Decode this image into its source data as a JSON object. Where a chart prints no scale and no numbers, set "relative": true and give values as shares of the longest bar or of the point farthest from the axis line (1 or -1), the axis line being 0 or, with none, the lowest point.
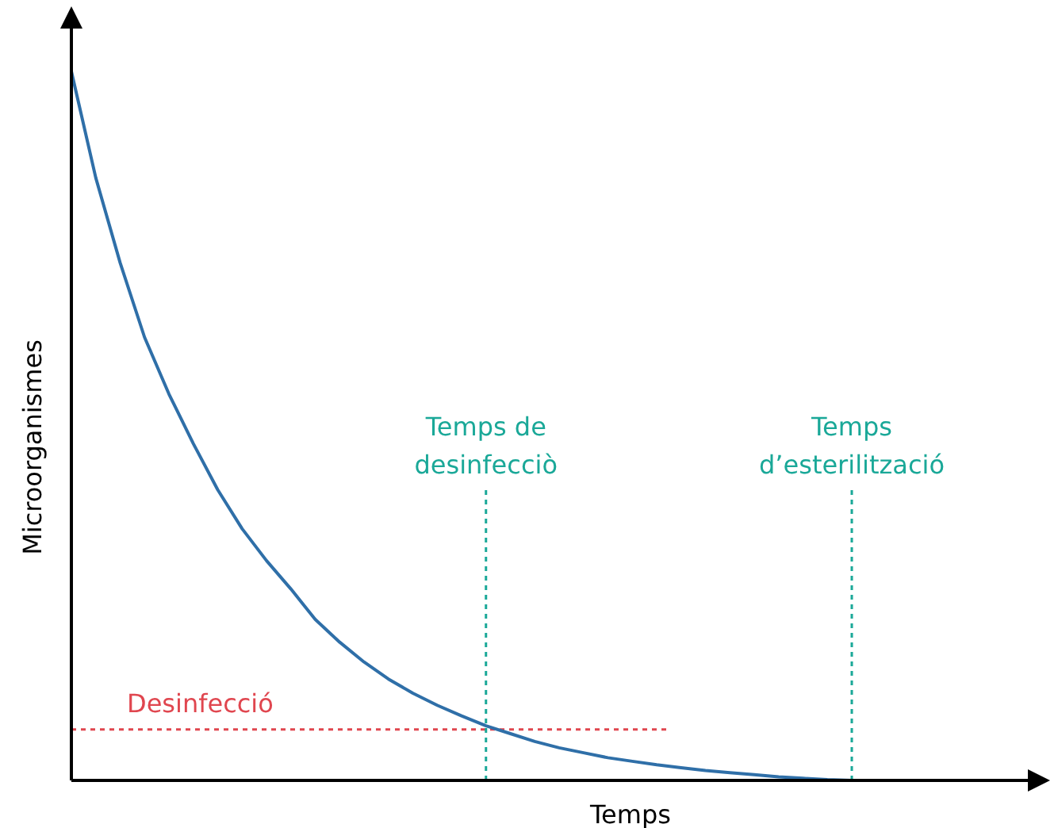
{
  "chart_data": {
    "type": "line",
    "relative": true,
    "xlabel": "Temps",
    "ylabel": "Microorganismes",
    "categories": [
      null,
      null,
      null,
      null,
      null,
      null,
      null,
      null,
      null,
      null,
      null,
      null,
      null,
      null,
      null,
      null,
      null,
      null,
      null,
      null,
      null,
      null,
      null,
      null,
      null,
      null,
      null,
      null,
      null,
      null,
      null,
      null,
      null,
      null,
      null,
      null,
      null,
      null,
      null,
      null,
      null
    ],
    "series": [
      {
        "color": "#2f6fa8",
        "values": [
          1,
          0.85,
          0.73,
          0.625,
          0.545,
          0.475,
          0.41,
          0.355,
          0.31,
          0.27,
          0.227,
          0.195,
          0.167,
          0.143,
          0.123,
          0.106,
          0.091,
          0.077,
          0.066,
          0.055,
          0.046,
          0.039,
          0.032,
          0.027,
          0.022,
          0.018,
          0.014,
          0.011,
          0.008,
          0.005,
          0.003,
          0.001,
          0,
          null,
          null,
          null,
          null,
          null,
          null,
          null,
          null
        ]
      }
    ],
    "ref_lines": [
      {
        "axis": "y",
        "value": 0.072,
        "label": "Desinfecció",
        "color": "#e0464f",
        "line_style": "dotted"
      }
    ],
    "annotations": [
      "Temps de desinfecciò",
      "Temps d’esterilització"
    ]
  }
}
